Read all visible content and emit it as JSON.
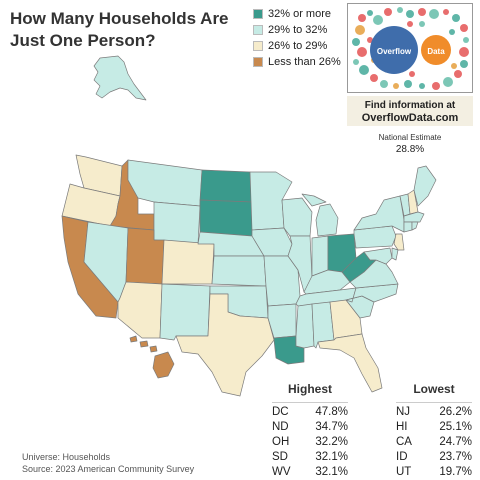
{
  "title": "How Many Households Are Just One Person?",
  "legend": [
    {
      "label": "32% or more",
      "color": "#3a9a8c"
    },
    {
      "label": "29% to 32%",
      "color": "#c6ebe5"
    },
    {
      "label": "26% to 29%",
      "color": "#f6eccc"
    },
    {
      "label": "Less than 26%",
      "color": "#c8894e"
    }
  ],
  "logo": {
    "left_word": "Overflow",
    "right_word": "Data"
  },
  "promo": {
    "line1": "Find information at",
    "line2": "OverflowData.com"
  },
  "national_estimate": {
    "label": "National Estimate",
    "value": "28.8%"
  },
  "highest": {
    "title": "Highest",
    "rows": [
      {
        "state": "DC",
        "value": "47.8%"
      },
      {
        "state": "ND",
        "value": "34.7%"
      },
      {
        "state": "OH",
        "value": "32.2%"
      },
      {
        "state": "SD",
        "value": "32.1%"
      },
      {
        "state": "WV",
        "value": "32.1%"
      }
    ]
  },
  "lowest": {
    "title": "Lowest",
    "rows": [
      {
        "state": "NJ",
        "value": "26.2%"
      },
      {
        "state": "HI",
        "value": "25.1%"
      },
      {
        "state": "CA",
        "value": "24.7%"
      },
      {
        "state": "ID",
        "value": "23.7%"
      },
      {
        "state": "UT",
        "value": "19.7%"
      }
    ]
  },
  "footer": {
    "universe": "Universe: Households",
    "source": "Source: 2023 American Community Survey"
  },
  "map_colors": {
    "high": "#3a9a8c",
    "mid": "#c6ebe5",
    "low": "#f6eccc",
    "lowest": "#c8894e",
    "border": "#7b7b7b"
  }
}
